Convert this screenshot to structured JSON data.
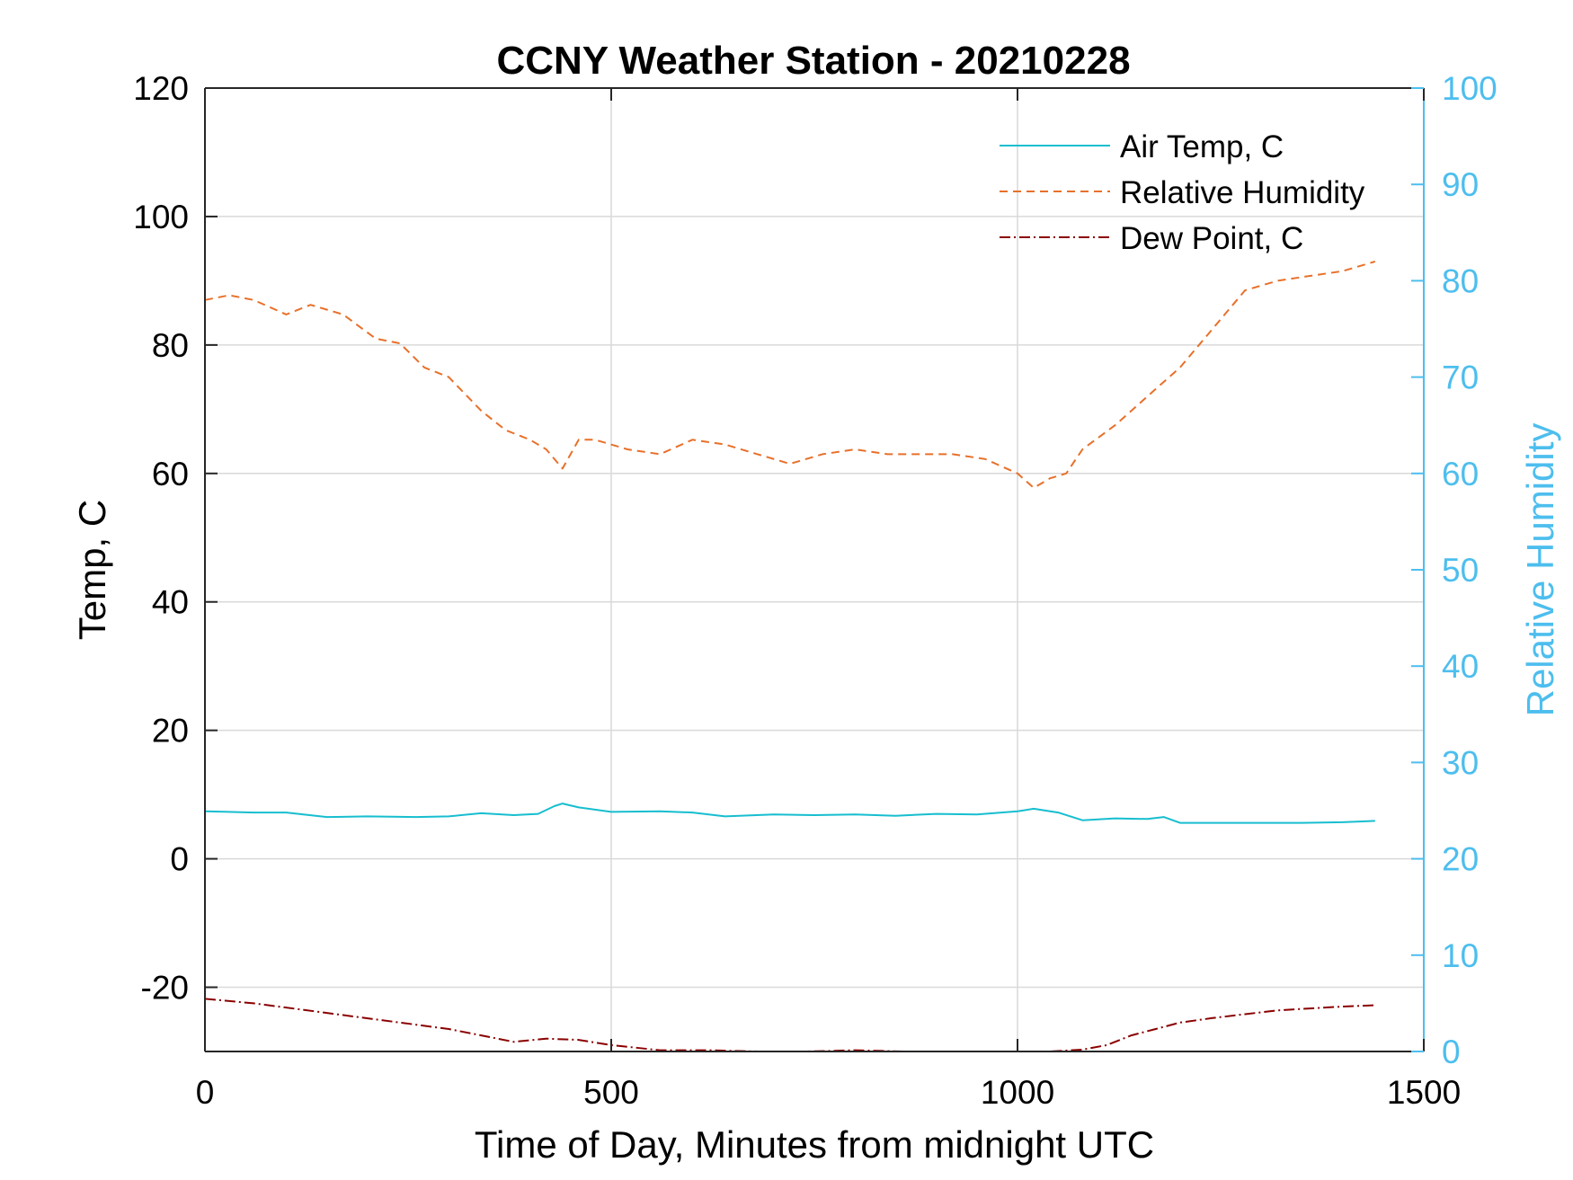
{
  "colors": {
    "air_temp": "#17BECF",
    "humidity": "#E8702A",
    "dew_point": "#8B0000",
    "right_axis": "#4DBEEE",
    "grid": "#D9D9D9"
  },
  "chart_data": {
    "type": "line",
    "title": "CCNY Weather Station - 20210228",
    "xlabel": "Time of Day, Minutes from midnight UTC",
    "ylabel_left": "Temp, C",
    "ylabel_right": "Relative Humidity",
    "xlim": [
      0,
      1500
    ],
    "ylim_left": [
      -30,
      120
    ],
    "ylim_right": [
      0,
      100
    ],
    "xticks": [
      "0",
      "500",
      "1000",
      "1500"
    ],
    "xtick_values": [
      0,
      500,
      1000,
      1500
    ],
    "yticks_left": [
      "-20",
      "0",
      "20",
      "40",
      "60",
      "80",
      "100",
      "120"
    ],
    "ytick_values_left": [
      -20,
      0,
      20,
      40,
      60,
      80,
      100,
      120
    ],
    "yticks_right": [
      "0",
      "10",
      "20",
      "30",
      "40",
      "50",
      "60",
      "70",
      "80",
      "90",
      "100"
    ],
    "ytick_values_right": [
      0,
      10,
      20,
      30,
      40,
      50,
      60,
      70,
      80,
      90,
      100
    ],
    "grid": true,
    "legend_position": "top-right",
    "series": [
      {
        "name": "Air Temp, C",
        "axis": "left",
        "style": "solid",
        "x": [
          0,
          60,
          100,
          150,
          200,
          260,
          300,
          340,
          380,
          410,
          430,
          440,
          460,
          500,
          560,
          600,
          640,
          700,
          750,
          800,
          850,
          900,
          950,
          1000,
          1020,
          1050,
          1080,
          1120,
          1160,
          1180,
          1200,
          1250,
          1300,
          1350,
          1400,
          1440
        ],
        "values": [
          7.4,
          7.2,
          7.2,
          6.5,
          6.6,
          6.5,
          6.6,
          7.1,
          6.8,
          7.0,
          8.2,
          8.6,
          8.0,
          7.3,
          7.4,
          7.2,
          6.6,
          6.9,
          6.8,
          6.9,
          6.7,
          7.0,
          6.9,
          7.4,
          7.8,
          7.2,
          6.0,
          6.3,
          6.2,
          6.5,
          5.6,
          5.6,
          5.6,
          5.6,
          5.7,
          5.9
        ]
      },
      {
        "name": "Relative Humidity",
        "axis": "right",
        "style": "dashed",
        "x": [
          0,
          30,
          60,
          100,
          130,
          170,
          210,
          240,
          270,
          300,
          340,
          370,
          400,
          420,
          440,
          460,
          480,
          520,
          560,
          600,
          640,
          680,
          720,
          760,
          800,
          840,
          880,
          920,
          960,
          1000,
          1020,
          1040,
          1060,
          1080,
          1120,
          1160,
          1200,
          1240,
          1280,
          1320,
          1360,
          1400,
          1440
        ],
        "values": [
          78,
          78.5,
          78,
          76.5,
          77.5,
          76.5,
          74,
          73.5,
          71,
          70,
          66.5,
          64.5,
          63.5,
          62.5,
          60.5,
          63.5,
          63.5,
          62.5,
          62,
          63.5,
          63,
          62,
          61,
          62,
          62.5,
          62,
          62,
          62,
          61.5,
          60,
          58.5,
          59.5,
          60,
          62.5,
          65,
          68,
          71,
          75,
          79,
          80,
          80.5,
          81,
          82
        ]
      },
      {
        "name": "Dew Point, C",
        "axis": "left",
        "style": "dashdot",
        "x": [
          0,
          60,
          120,
          180,
          240,
          300,
          340,
          380,
          420,
          460,
          500,
          560,
          620,
          680,
          740,
          800,
          860,
          920,
          980,
          1040,
          1080,
          1110,
          1140,
          1170,
          1200,
          1240,
          1280,
          1320,
          1360,
          1400,
          1440
        ],
        "values": [
          -21.8,
          -22.5,
          -23.5,
          -24.5,
          -25.5,
          -26.5,
          -27.5,
          -28.5,
          -28.0,
          -28.2,
          -29.0,
          -29.8,
          -29.8,
          -30.0,
          -30.0,
          -29.8,
          -30.0,
          -30.0,
          -30.0,
          -30.0,
          -29.7,
          -29.0,
          -27.5,
          -26.5,
          -25.5,
          -24.8,
          -24.2,
          -23.6,
          -23.3,
          -23.0,
          -22.8
        ]
      }
    ]
  }
}
